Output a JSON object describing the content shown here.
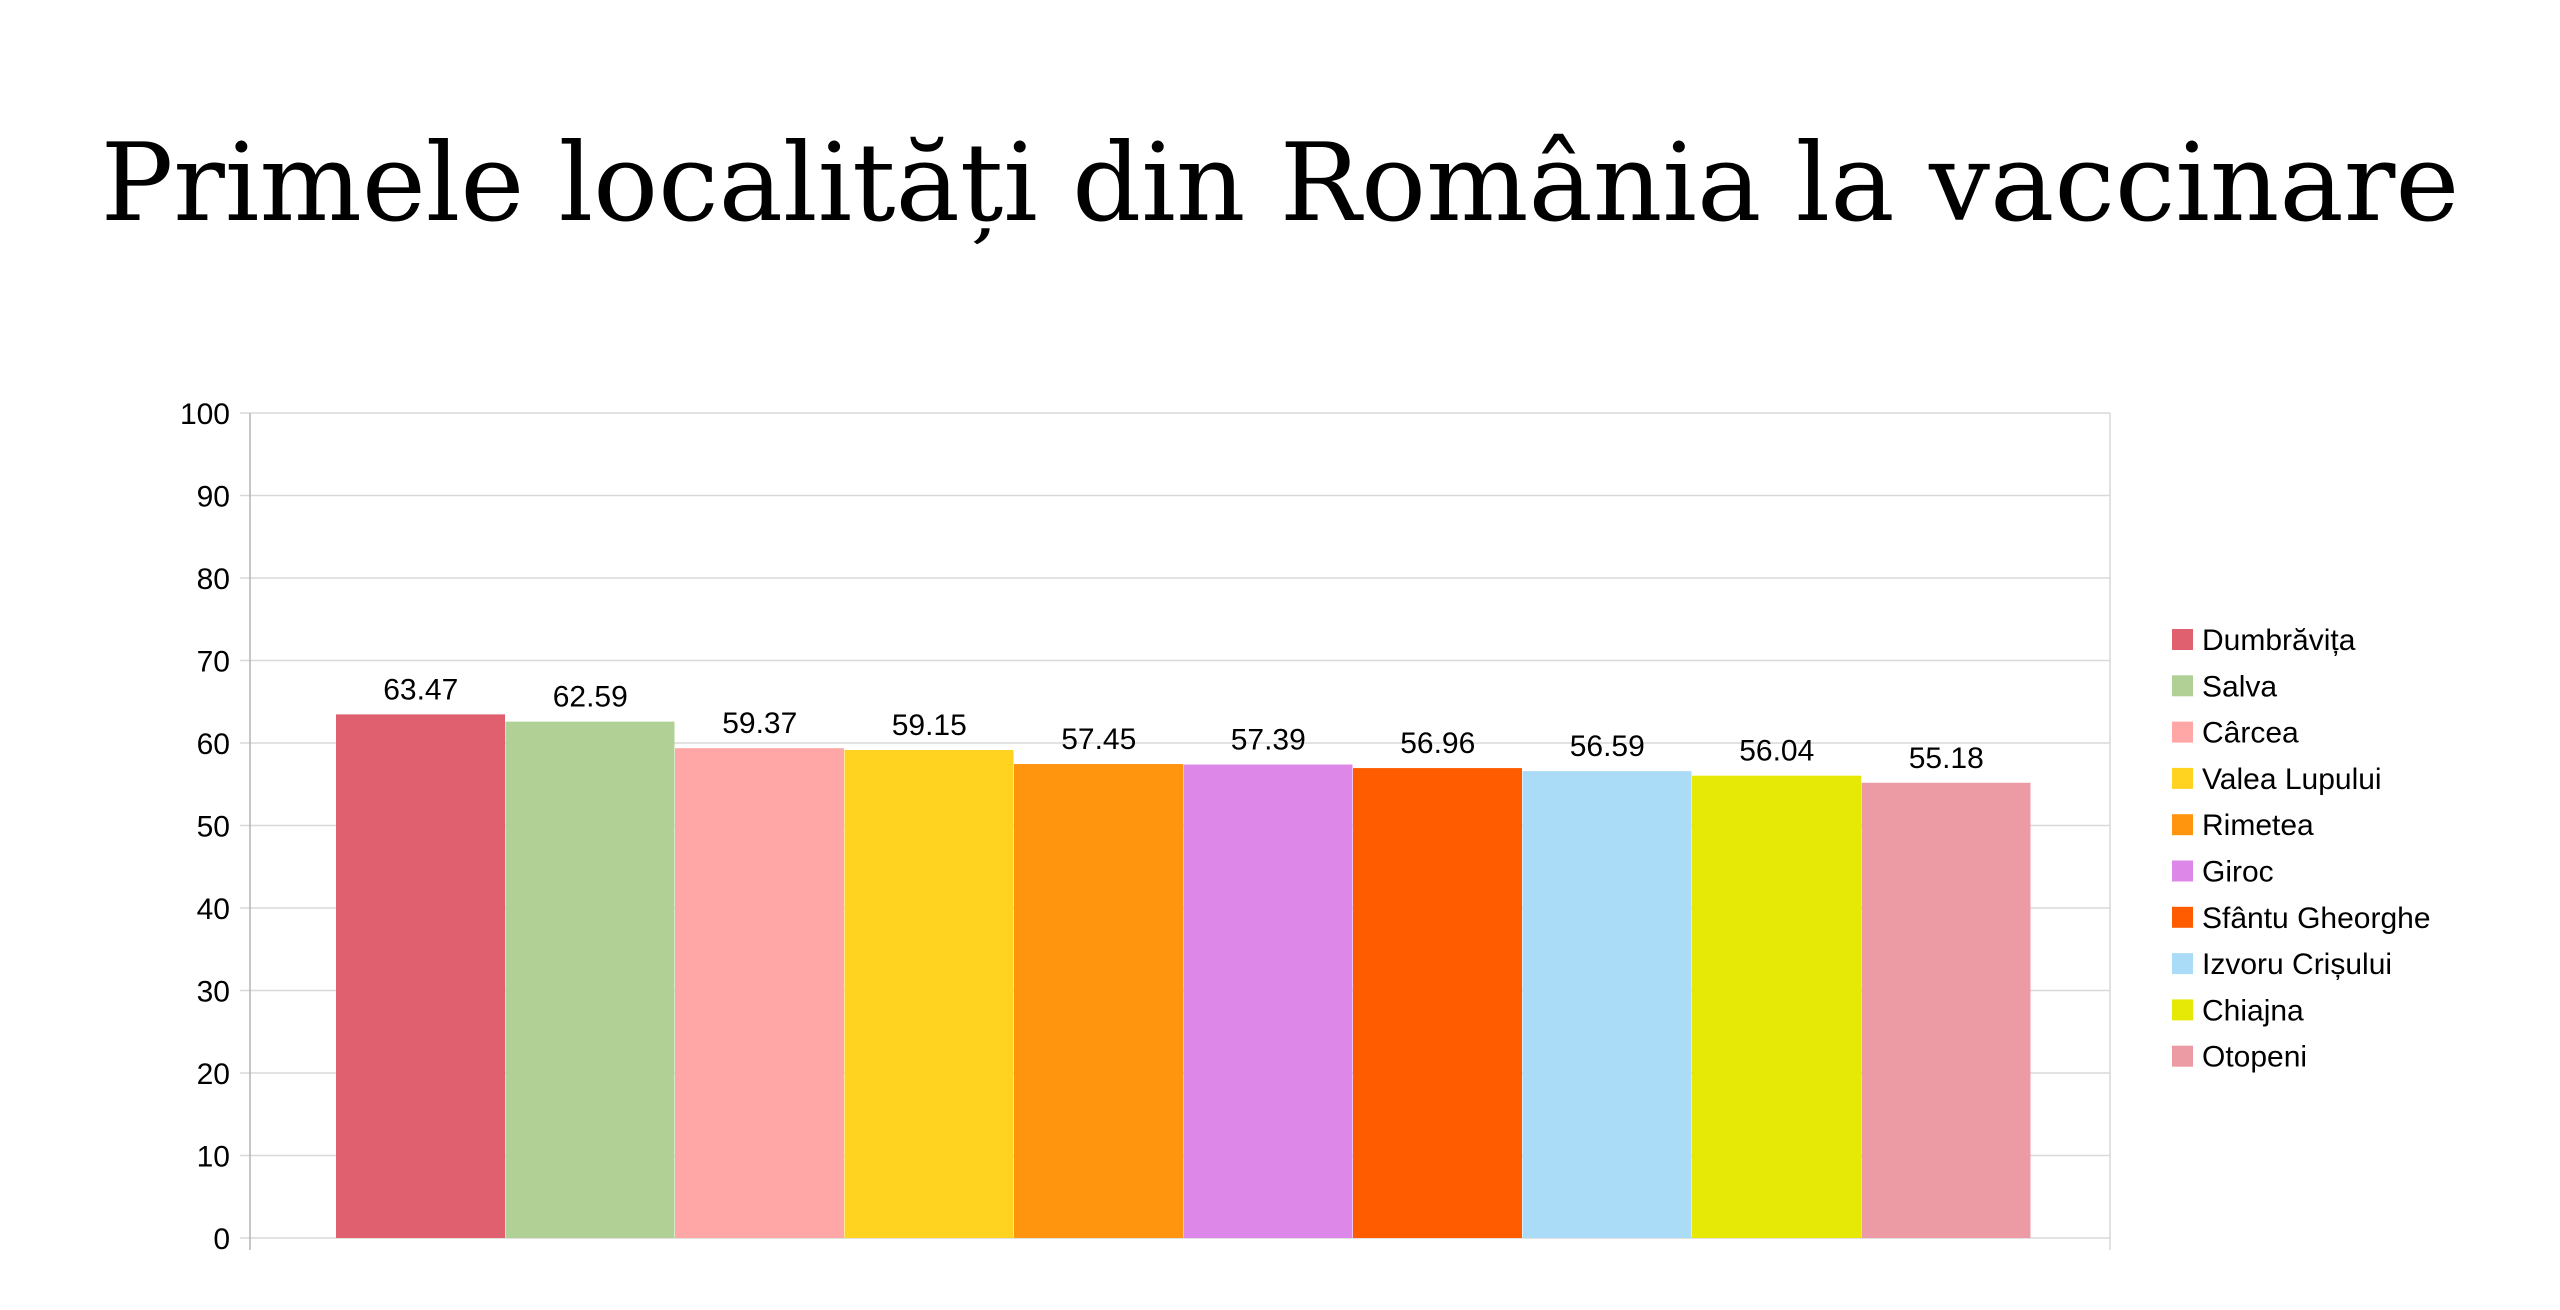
{
  "chart_data": {
    "type": "bar",
    "title": "Primele localități din România la vaccinare",
    "xlabel": "",
    "ylabel": "",
    "ylim": [
      0,
      100
    ],
    "yticks": [
      "0",
      "10",
      "20",
      "30",
      "40",
      "50",
      "60",
      "70",
      "80",
      "90",
      "100"
    ],
    "grid": true,
    "legend_position": "right",
    "series": [
      {
        "name": "Dumbrăvița",
        "value": 63.47,
        "label": "63.47",
        "color": "#e06070"
      },
      {
        "name": "Salva",
        "value": 62.59,
        "label": "62.59",
        "color": "#b0d096"
      },
      {
        "name": "Cârcea",
        "value": 59.37,
        "label": "59.37",
        "color": "#ffa6a6"
      },
      {
        "name": "Valea Lupului",
        "value": 59.15,
        "label": "59.15",
        "color": "#ffd320"
      },
      {
        "name": "Rimetea",
        "value": 57.45,
        "label": "57.45",
        "color": "#ff950e"
      },
      {
        "name": "Giroc",
        "value": 57.39,
        "label": "57.39",
        "color": "#dd87e8"
      },
      {
        "name": "Sfântu Gheorghe",
        "value": 56.96,
        "label": "56.96",
        "color": "#ff5c00"
      },
      {
        "name": "Izvoru Crișului",
        "value": 56.59,
        "label": "56.59",
        "color": "#aadcf7"
      },
      {
        "name": "Chiajna",
        "value": 56.04,
        "label": "56.04",
        "color": "#e6e905"
      },
      {
        "name": "Otopeni",
        "value": 55.18,
        "label": "55.18",
        "color": "#ec9ba4"
      }
    ]
  }
}
